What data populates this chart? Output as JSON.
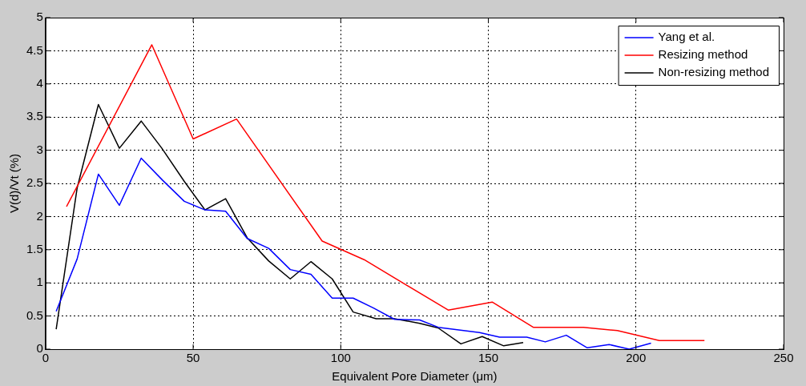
{
  "chart_data": {
    "type": "line",
    "xlabel": "Equivalent Pore Diameter (μm)",
    "ylabel": "V(d)/Vt (%)",
    "xlim": [
      0,
      250
    ],
    "xticks": [
      0,
      50,
      100,
      150,
      200,
      250
    ],
    "ylim": [
      0,
      5
    ],
    "yticks": [
      0,
      0.5,
      1,
      1.5,
      2,
      2.5,
      3,
      3.5,
      4,
      4.5,
      5
    ],
    "grid": true,
    "legend": "top right",
    "marker": "none",
    "line_style": "solid",
    "series": [
      {
        "name": "Yang et al.",
        "color": "#0000ff",
        "x": [
          3.6,
          10.7,
          17.9,
          25,
          32.4,
          39.6,
          47,
          54,
          61,
          68.3,
          75.6,
          82.9,
          89.9,
          97.1,
          104.2,
          111.1,
          118.2,
          126.7,
          133,
          147,
          153.8,
          163,
          169.3,
          176.4,
          183.5,
          190.9,
          197.7,
          205.1
        ],
        "values": [
          0.57,
          1.36,
          2.64,
          2.17,
          2.88,
          2.55,
          2.23,
          2.1,
          2.08,
          1.67,
          1.52,
          1.2,
          1.13,
          0.77,
          0.77,
          0.62,
          0.45,
          0.44,
          0.33,
          0.25,
          0.18,
          0.18,
          0.11,
          0.21,
          0.02,
          0.07,
          0.0,
          0.09
        ]
      },
      {
        "name": "Resizing method",
        "color": "#ff0000",
        "x": [
          7.1,
          36,
          50,
          64.7,
          93.7,
          107.9,
          136.4,
          151.3,
          165.2,
          182.2,
          193.7,
          207.9,
          223.2
        ],
        "values": [
          2.15,
          4.59,
          3.17,
          3.47,
          1.63,
          1.35,
          0.59,
          0.71,
          0.33,
          0.33,
          0.28,
          0.13,
          0.13
        ]
      },
      {
        "name": "Non-resizing method",
        "color": "#000000",
        "x": [
          3.6,
          10.7,
          17.9,
          25,
          32.4,
          39.4,
          47,
          54,
          61,
          68.3,
          75.6,
          82.9,
          89.9,
          97.1,
          104.2,
          112,
          118.2,
          126.7,
          133,
          140.7,
          147.9,
          155.2,
          161.8
        ],
        "values": [
          0.3,
          2.43,
          3.69,
          3.03,
          3.44,
          3.03,
          2.53,
          2.1,
          2.27,
          1.68,
          1.33,
          1.06,
          1.32,
          1.06,
          0.56,
          0.46,
          0.46,
          0.39,
          0.32,
          0.08,
          0.19,
          0.05,
          0.1
        ]
      }
    ]
  }
}
